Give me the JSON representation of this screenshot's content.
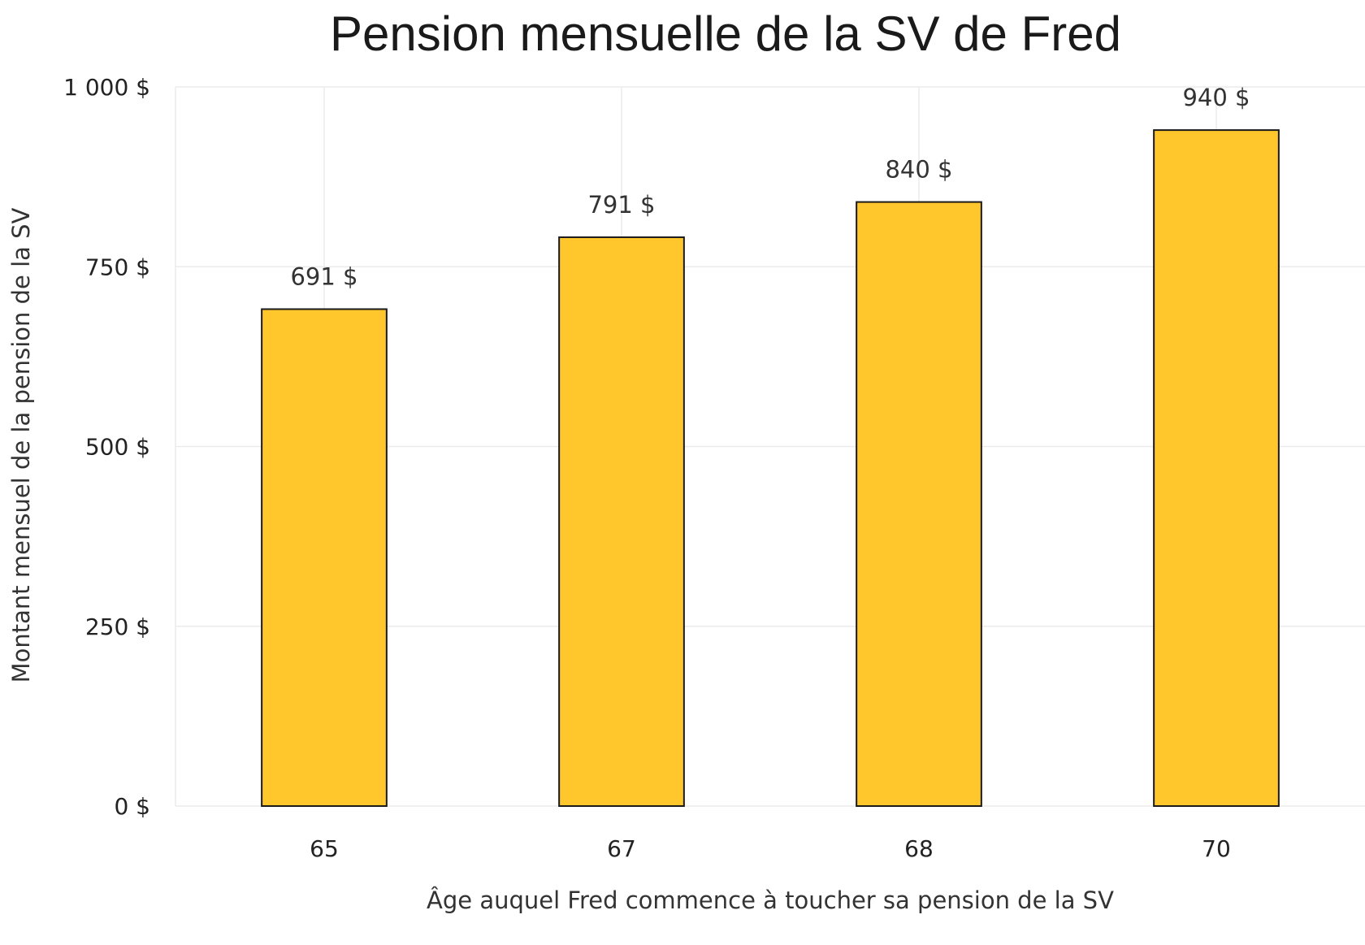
{
  "chart_data": {
    "type": "bar",
    "title": "Pension mensuelle de la SV de Fred",
    "xlabel": "Âge auquel Fred commence à toucher sa pension de la SV",
    "ylabel": "Montant mensuel de la pension de la SV",
    "categories": [
      "65",
      "67",
      "68",
      "70"
    ],
    "values": [
      691,
      791,
      840,
      940
    ],
    "data_labels": [
      "691 $",
      "791 $",
      "840 $",
      "940 $"
    ],
    "ylim": [
      0,
      1000
    ],
    "yticks": [
      0,
      250,
      500,
      750,
      1000
    ],
    "ytick_labels": [
      "0 $",
      "250 $",
      "500 $",
      "750 $",
      "1 000 $"
    ],
    "grid": true,
    "legend": "none",
    "bar_color": "#FFC72C",
    "bar_edge_color": "#1a1a1a"
  }
}
